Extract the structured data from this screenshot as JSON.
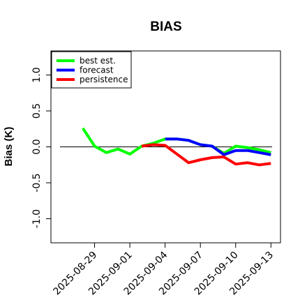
{
  "chart_data": {
    "type": "line",
    "title": "BIAS",
    "xlabel": "",
    "ylabel": "Bias (K)",
    "ylim": [
      -1.3,
      1.3
    ],
    "yticks": [
      -1.0,
      -0.5,
      0.0,
      0.5,
      1.0
    ],
    "ytick_labels": [
      "-1.0",
      "-0.5",
      "0.0",
      "0.5",
      "1.0"
    ],
    "xlim": [
      "2025-08-26",
      "2025-09-14"
    ],
    "xticks": [
      "2025-08-29",
      "2025-09-01",
      "2025-09-04",
      "2025-09-07",
      "2025-09-10",
      "2025-09-13"
    ],
    "xtick_colors": [
      "#000000",
      "#000000",
      "#228B22",
      "#000000",
      "#000000",
      "#000000"
    ],
    "reference_line": 0.0,
    "legend_position": "top-left",
    "grid": false,
    "series": [
      {
        "name": "best est.",
        "color": "#00ff00",
        "x": [
          "2025-08-28",
          "2025-08-29",
          "2025-08-30",
          "2025-08-31",
          "2025-09-01",
          "2025-09-02",
          "2025-09-03",
          "2025-09-04",
          "2025-09-05",
          "2025-09-06",
          "2025-09-07",
          "2025-09-08",
          "2025-09-09",
          "2025-09-10",
          "2025-09-11",
          "2025-09-12",
          "2025-09-13"
        ],
        "values": [
          0.26,
          0.01,
          -0.08,
          -0.03,
          -0.1,
          0.01,
          0.05,
          0.11,
          0.11,
          0.09,
          0.03,
          0.01,
          -0.09,
          0.01,
          -0.01,
          -0.04,
          -0.08
        ]
      },
      {
        "name": "forecast",
        "color": "#0000ff",
        "x": [
          "2025-09-04",
          "2025-09-05",
          "2025-09-06",
          "2025-09-07",
          "2025-09-08",
          "2025-09-09",
          "2025-09-10",
          "2025-09-11",
          "2025-09-12",
          "2025-09-13"
        ],
        "values": [
          0.11,
          0.11,
          0.09,
          0.03,
          0.01,
          -0.11,
          -0.05,
          -0.05,
          -0.08,
          -0.11
        ]
      },
      {
        "name": "persistence",
        "color": "#ff0000",
        "x": [
          "2025-09-02",
          "2025-09-03",
          "2025-09-04",
          "2025-09-05",
          "2025-09-06",
          "2025-09-07",
          "2025-09-08",
          "2025-09-09",
          "2025-09-10",
          "2025-09-11",
          "2025-09-12",
          "2025-09-13"
        ],
        "values": [
          0.01,
          0.03,
          0.02,
          -0.1,
          -0.22,
          -0.18,
          -0.15,
          -0.14,
          -0.24,
          -0.22,
          -0.25,
          -0.23
        ]
      }
    ]
  }
}
